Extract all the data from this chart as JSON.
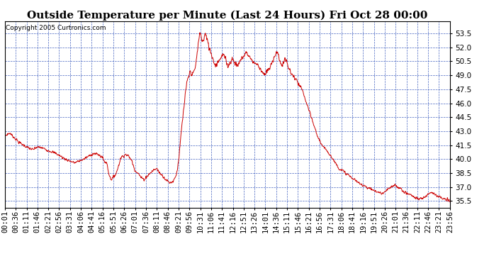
{
  "title": "Outside Temperature per Minute (Last 24 Hours) Fri Oct 28 00:00",
  "copyright": "Copyright 2005 Curtronics.com",
  "yticks": [
    35.5,
    37.0,
    38.5,
    40.0,
    41.5,
    43.0,
    44.5,
    46.0,
    47.5,
    49.0,
    50.5,
    52.0,
    53.5
  ],
  "ylim": [
    34.8,
    54.8
  ],
  "xtick_labels": [
    "00:01",
    "00:36",
    "01:11",
    "01:46",
    "02:21",
    "02:56",
    "03:31",
    "04:06",
    "04:41",
    "05:16",
    "05:51",
    "06:26",
    "07:01",
    "07:36",
    "08:11",
    "08:46",
    "09:21",
    "09:56",
    "10:31",
    "11:06",
    "11:41",
    "12:16",
    "12:51",
    "13:26",
    "14:01",
    "14:36",
    "15:11",
    "15:46",
    "16:21",
    "16:56",
    "17:31",
    "18:06",
    "18:41",
    "19:16",
    "19:51",
    "20:26",
    "21:01",
    "21:36",
    "22:11",
    "22:46",
    "23:21",
    "23:56"
  ],
  "line_color": "#cc0000",
  "grid_color": "#3355bb",
  "bg_color": "#ffffff",
  "title_fontsize": 11,
  "tick_fontsize": 7.5,
  "copyright_fontsize": 6.5,
  "keypoints": [
    [
      0,
      42.5
    ],
    [
      15,
      42.8
    ],
    [
      30,
      42.3
    ],
    [
      45,
      41.8
    ],
    [
      60,
      41.5
    ],
    [
      75,
      41.2
    ],
    [
      90,
      41.0
    ],
    [
      105,
      41.3
    ],
    [
      120,
      41.2
    ],
    [
      135,
      41.0
    ],
    [
      150,
      40.8
    ],
    [
      165,
      40.6
    ],
    [
      180,
      40.3
    ],
    [
      195,
      40.0
    ],
    [
      210,
      39.8
    ],
    [
      225,
      39.6
    ],
    [
      240,
      39.8
    ],
    [
      255,
      40.0
    ],
    [
      270,
      40.3
    ],
    [
      285,
      40.6
    ],
    [
      300,
      40.5
    ],
    [
      315,
      40.2
    ],
    [
      320,
      39.8
    ],
    [
      330,
      39.5
    ],
    [
      335,
      38.5
    ],
    [
      340,
      38.0
    ],
    [
      345,
      37.8
    ],
    [
      360,
      38.5
    ],
    [
      375,
      40.2
    ],
    [
      390,
      40.5
    ],
    [
      400,
      40.3
    ],
    [
      410,
      39.8
    ],
    [
      420,
      38.8
    ],
    [
      430,
      38.5
    ],
    [
      440,
      38.0
    ],
    [
      450,
      37.8
    ],
    [
      460,
      38.2
    ],
    [
      470,
      38.5
    ],
    [
      480,
      38.8
    ],
    [
      490,
      39.0
    ],
    [
      500,
      38.5
    ],
    [
      510,
      38.2
    ],
    [
      520,
      37.8
    ],
    [
      530,
      37.5
    ],
    [
      540,
      37.5
    ],
    [
      550,
      38.0
    ],
    [
      555,
      38.5
    ],
    [
      560,
      39.5
    ],
    [
      565,
      41.0
    ],
    [
      570,
      43.0
    ],
    [
      575,
      44.5
    ],
    [
      580,
      46.0
    ],
    [
      585,
      47.5
    ],
    [
      590,
      48.5
    ],
    [
      595,
      49.0
    ],
    [
      600,
      49.5
    ],
    [
      605,
      49.0
    ],
    [
      610,
      49.3
    ],
    [
      615,
      49.8
    ],
    [
      618,
      50.5
    ],
    [
      622,
      51.5
    ],
    [
      625,
      52.5
    ],
    [
      628,
      53.2
    ],
    [
      630,
      53.5
    ],
    [
      633,
      53.3
    ],
    [
      636,
      53.0
    ],
    [
      640,
      52.5
    ],
    [
      643,
      53.0
    ],
    [
      646,
      53.3
    ],
    [
      648,
      53.5
    ],
    [
      650,
      53.2
    ],
    [
      653,
      52.8
    ],
    [
      656,
      52.5
    ],
    [
      660,
      52.0
    ],
    [
      665,
      51.5
    ],
    [
      670,
      51.0
    ],
    [
      675,
      50.5
    ],
    [
      680,
      50.0
    ],
    [
      685,
      50.3
    ],
    [
      690,
      50.5
    ],
    [
      695,
      50.8
    ],
    [
      700,
      51.0
    ],
    [
      705,
      51.2
    ],
    [
      710,
      51.0
    ],
    [
      715,
      50.5
    ],
    [
      720,
      50.0
    ],
    [
      725,
      50.2
    ],
    [
      730,
      50.5
    ],
    [
      735,
      50.8
    ],
    [
      740,
      50.5
    ],
    [
      745,
      50.3
    ],
    [
      750,
      50.0
    ],
    [
      755,
      50.2
    ],
    [
      760,
      50.5
    ],
    [
      765,
      50.8
    ],
    [
      770,
      51.0
    ],
    [
      775,
      51.2
    ],
    [
      780,
      51.5
    ],
    [
      785,
      51.3
    ],
    [
      790,
      51.0
    ],
    [
      795,
      50.8
    ],
    [
      800,
      50.5
    ],
    [
      810,
      50.3
    ],
    [
      820,
      50.0
    ],
    [
      830,
      49.5
    ],
    [
      840,
      49.0
    ],
    [
      850,
      49.5
    ],
    [
      860,
      50.0
    ],
    [
      865,
      50.5
    ],
    [
      870,
      51.0
    ],
    [
      875,
      51.3
    ],
    [
      880,
      51.5
    ],
    [
      885,
      51.0
    ],
    [
      890,
      50.5
    ],
    [
      895,
      50.0
    ],
    [
      900,
      50.3
    ],
    [
      905,
      50.8
    ],
    [
      910,
      50.5
    ],
    [
      915,
      50.0
    ],
    [
      920,
      49.5
    ],
    [
      930,
      49.0
    ],
    [
      940,
      48.5
    ],
    [
      950,
      48.0
    ],
    [
      960,
      47.5
    ],
    [
      970,
      46.5
    ],
    [
      980,
      45.5
    ],
    [
      990,
      44.5
    ],
    [
      1000,
      43.5
    ],
    [
      1010,
      42.5
    ],
    [
      1020,
      41.8
    ],
    [
      1030,
      41.2
    ],
    [
      1040,
      41.0
    ],
    [
      1050,
      40.5
    ],
    [
      1060,
      40.0
    ],
    [
      1070,
      39.5
    ],
    [
      1080,
      39.0
    ],
    [
      1090,
      38.8
    ],
    [
      1100,
      38.5
    ],
    [
      1110,
      38.3
    ],
    [
      1120,
      38.0
    ],
    [
      1130,
      37.8
    ],
    [
      1140,
      37.5
    ],
    [
      1150,
      37.3
    ],
    [
      1160,
      37.2
    ],
    [
      1170,
      37.0
    ],
    [
      1180,
      36.8
    ],
    [
      1190,
      36.7
    ],
    [
      1200,
      36.5
    ],
    [
      1210,
      36.4
    ],
    [
      1220,
      36.3
    ],
    [
      1230,
      36.5
    ],
    [
      1240,
      36.8
    ],
    [
      1250,
      37.0
    ],
    [
      1260,
      37.2
    ],
    [
      1270,
      37.0
    ],
    [
      1280,
      36.8
    ],
    [
      1290,
      36.5
    ],
    [
      1300,
      36.3
    ],
    [
      1310,
      36.2
    ],
    [
      1320,
      36.0
    ],
    [
      1330,
      35.8
    ],
    [
      1340,
      35.7
    ],
    [
      1350,
      35.8
    ],
    [
      1360,
      36.0
    ],
    [
      1370,
      36.3
    ],
    [
      1380,
      36.5
    ],
    [
      1390,
      36.2
    ],
    [
      1400,
      36.0
    ],
    [
      1410,
      35.8
    ],
    [
      1420,
      35.7
    ],
    [
      1430,
      35.6
    ],
    [
      1439,
      35.5
    ]
  ]
}
